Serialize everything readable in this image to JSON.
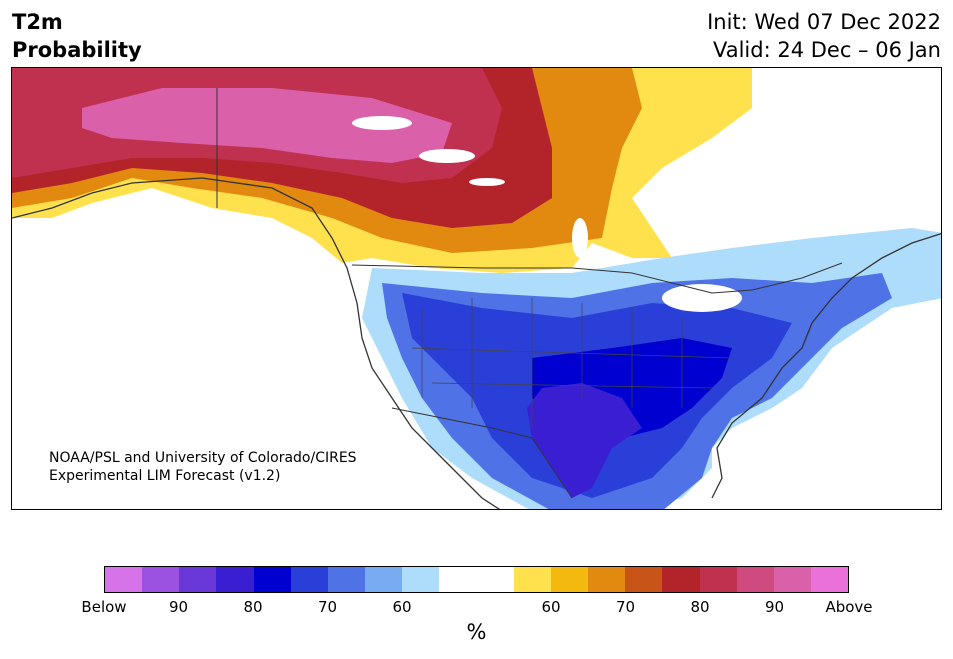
{
  "title": {
    "line1": "T2m",
    "line2": "Probability"
  },
  "subtitle": {
    "init": "Init: Wed 07 Dec 2022",
    "valid": "Valid: 24 Dec – 06 Jan"
  },
  "credit": {
    "line1": "NOAA/PSL and University of Colorado/CIRES",
    "line2": "Experimental LIM Forecast (v1.2)"
  },
  "colorbar": {
    "colors": [
      "#d773e8",
      "#9b52e0",
      "#6a38d8",
      "#3a1fd2",
      "#0000d0",
      "#2a3fd8",
      "#4f72e6",
      "#78acf2",
      "#aedcfb",
      "#ffffff",
      "#ffffff",
      "#fee14d",
      "#f3b90e",
      "#e2890f",
      "#c85417",
      "#b2232a",
      "#c0304f",
      "#cf4a7f",
      "#db60aa",
      "#e971d9"
    ],
    "labels": [
      "Below",
      "90",
      "80",
      "70",
      "60",
      "60",
      "70",
      "80",
      "90",
      "Above"
    ],
    "unit": "%"
  },
  "regions": {
    "above_outer": "#c0304f",
    "above_core": "#db60aa",
    "warm_red": "#b2232a",
    "warm_orange": "#e2890f",
    "warm_yellow": "#fee14d",
    "cold_light": "#aedcfb",
    "cold_mid": "#4f72e6",
    "cold_deep": "#0000d0",
    "cold_purple": "#3a1fd2"
  }
}
